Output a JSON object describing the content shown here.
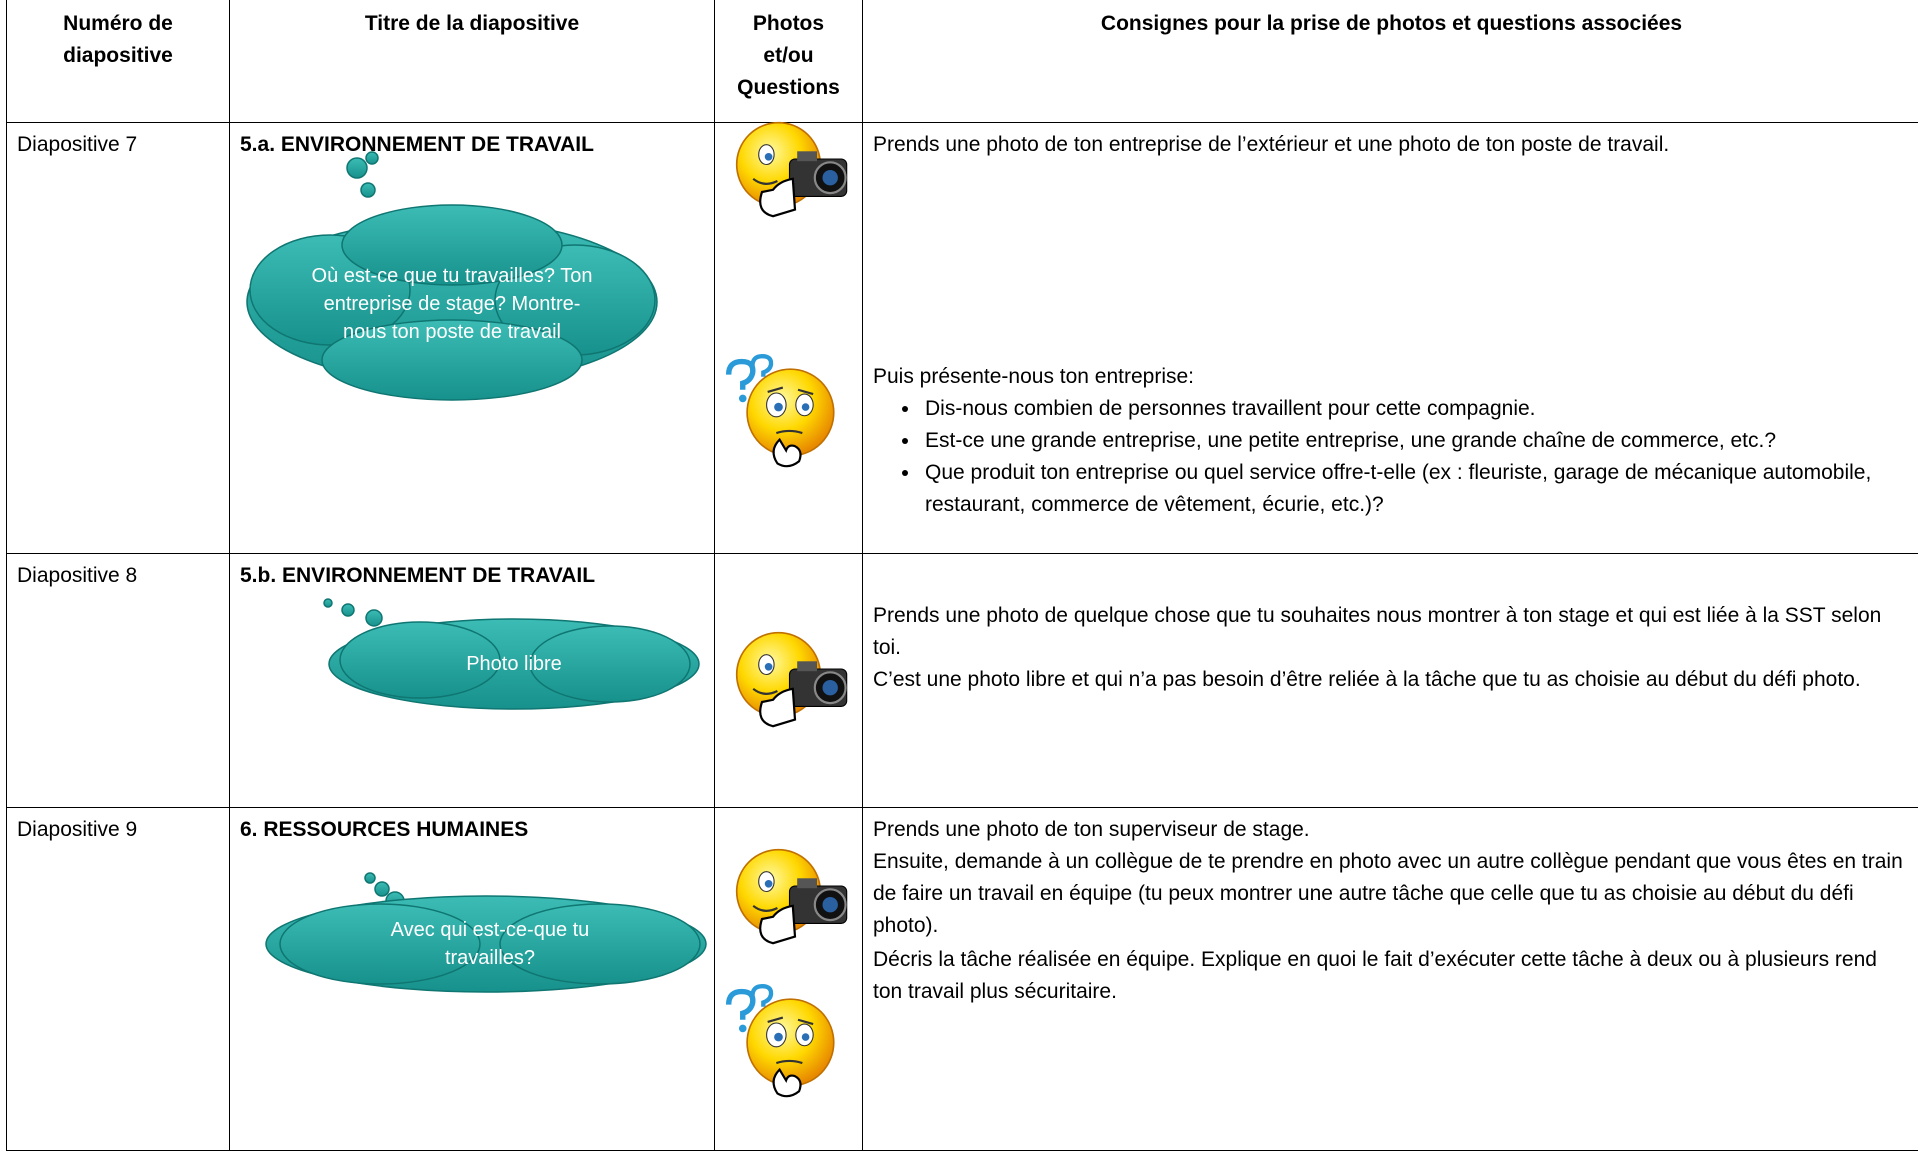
{
  "header": {
    "columns": [
      "Numéro de diapositive",
      "Titre de la diapositive",
      "Photos et/ou Questions",
      "Consignes pour la prise de photos et questions associées"
    ]
  },
  "rows": [
    {
      "number": "Diapositive 7",
      "title": "5.a. ENVIRONNEMENT DE TRAVAIL",
      "bubble": "Où est-ce que tu travailles? Ton entreprise de stage? Montre-nous ton poste de travail",
      "photo_instructions": [
        "Prends une photo de ton entreprise de l’extérieur et  une photo de ton poste de travail."
      ],
      "question_instructions": {
        "paragraphs": [
          "Puis présente-nous ton entreprise:"
        ],
        "bullets": [
          "Dis-nous combien de personnes travaillent pour cette compagnie.",
          "Est-ce une grande entreprise, une petite entreprise, une grande chaîne de commerce, etc.?",
          "Que produit ton entreprise ou quel service offre-t-elle (ex : fleuriste, garage de mécanique automobile, restaurant, commerce de vêtement, écurie, etc.)?"
        ]
      }
    },
    {
      "number": "Diapositive 8",
      "title": "5.b. ENVIRONNEMENT DE TRAVAIL",
      "bubble": "Photo libre",
      "photo_instructions": [
        "Prends une photo de quelque chose que tu souhaites nous montrer à ton stage et qui est liée à la SST selon toi.",
        "C’est une photo libre et qui n’a pas besoin d’être reliée à la tâche que tu as choisie au début du défi photo."
      ]
    },
    {
      "number": "Diapositive 9",
      "title": "6. RESSOURCES HUMAINES",
      "bubble": "Avec qui est-ce-que tu travailles?",
      "photo_instructions": [
        "Prends une photo de ton superviseur de stage.",
        "Ensuite, demande à un collègue de te prendre en photo avec un autre collègue pendant que vous êtes en train de faire un travail en équipe (tu peux montrer une autre tâche que celle que tu as choisie au début du défi photo)."
      ],
      "question_instructions": {
        "paragraphs": [
          "Décris la tâche réalisée en équipe. Explique en quoi le fait d’exécuter cette tâche à deux ou à plusieurs rend ton travail plus sécuritaire."
        ]
      }
    }
  ]
}
